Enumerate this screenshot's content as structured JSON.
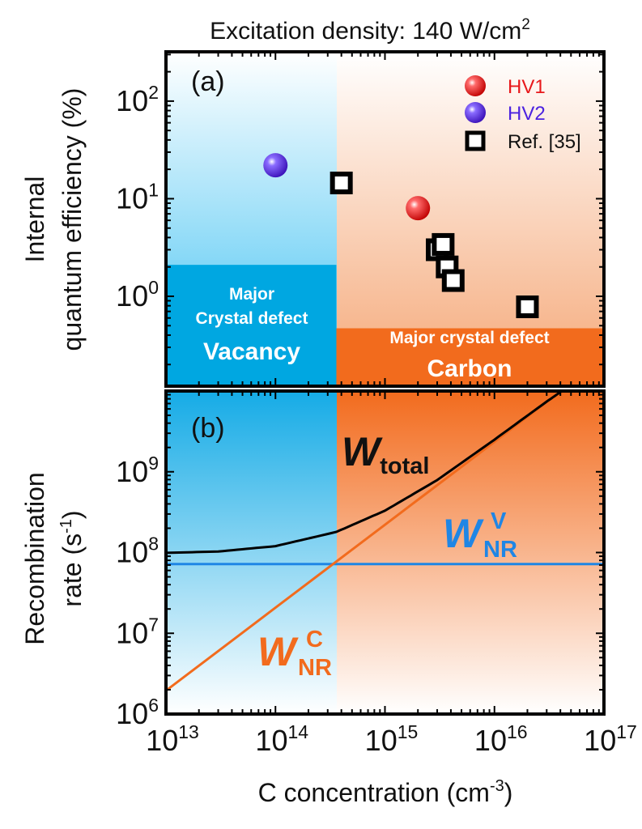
{
  "header": {
    "prefix": "Excitation density: 140 W/cm",
    "sup": "2"
  },
  "chart_data": [
    {
      "panel": "(a)",
      "type": "scatter",
      "ylabel": [
        "Internal",
        "quantum efficiency (%)"
      ],
      "x_log": true,
      "y_log": true,
      "xlim": [
        10000000000000.0,
        1e+17
      ],
      "ylim": [
        0.12,
        320
      ],
      "y_ticks": [
        {
          "base": "10",
          "exp": "0",
          "value": 1
        },
        {
          "base": "10",
          "exp": "1",
          "value": 10
        },
        {
          "base": "10",
          "exp": "2",
          "value": 100
        }
      ],
      "boundary_x": 360000000000000.0,
      "series": [
        {
          "name": "HV1",
          "marker": "sphere",
          "color": "#e8181b",
          "points": [
            [
              2000000000000000.0,
              8
            ]
          ]
        },
        {
          "name": "HV2",
          "marker": "sphere",
          "color": "#5b2ae8",
          "points": [
            [
              100000000000000.0,
              22
            ]
          ]
        },
        {
          "name": "Ref. [35]",
          "marker": "open-square",
          "color": "#000000",
          "points": [
            [
              400000000000000.0,
              14.5
            ],
            [
              3000000000000000.0,
              3.0
            ],
            [
              3400000000000000.0,
              3.4
            ],
            [
              3700000000000000.0,
              2.0
            ],
            [
              4200000000000000.0,
              1.45
            ],
            [
              2e+16,
              0.78
            ]
          ]
        }
      ],
      "regions": [
        {
          "lines": [
            "Major",
            "Crystal defect",
            "Vacancy"
          ],
          "color": "#00a7e1",
          "x_range": [
            10000000000000.0,
            360000000000000.0
          ],
          "y_top": 2.1
        },
        {
          "lines": [
            "Major crystal defect",
            "Carbon"
          ],
          "color": "#f26b1d",
          "x_range": [
            360000000000000.0,
            1e+17
          ],
          "y_top": 0.47
        }
      ]
    },
    {
      "panel": "(b)",
      "type": "line",
      "ylabel": [
        "Recombination",
        "rate (s",
        "-1",
        ")"
      ],
      "xlabel": {
        "text": "C concentration (cm",
        "sup": "-3",
        "close": ")"
      },
      "x_log": true,
      "y_log": true,
      "xlim": [
        10000000000000.0,
        1e+17
      ],
      "ylim": [
        1000000.0,
        10000000000.0
      ],
      "x_ticks": [
        {
          "base": "10",
          "exp": "13",
          "value": 10000000000000.0
        },
        {
          "base": "10",
          "exp": "14",
          "value": 100000000000000.0
        },
        {
          "base": "10",
          "exp": "15",
          "value": 1000000000000000.0
        },
        {
          "base": "10",
          "exp": "16",
          "value": 1e+16
        },
        {
          "base": "10",
          "exp": "17",
          "value": 1e+17
        }
      ],
      "y_ticks": [
        {
          "base": "10",
          "exp": "6",
          "value": 1000000.0
        },
        {
          "base": "10",
          "exp": "7",
          "value": 10000000.0
        },
        {
          "base": "10",
          "exp": "8",
          "value": 100000000.0
        },
        {
          "base": "10",
          "exp": "9",
          "value": 1000000000.0
        }
      ],
      "series": [
        {
          "name": "W_total",
          "label_main": "W",
          "label_sub": "total",
          "color": "#000000",
          "x": [
            10000000000000.0,
            30000000000000.0,
            100000000000000.0,
            360000000000000.0,
            1000000000000000.0,
            3000000000000000.0,
            1e+16,
            3e+16,
            5e+16
          ],
          "y": [
            99000000.0,
            103000000.0,
            120000000.0,
            180000000.0,
            330000000.0,
            790000000.0,
            2500000000.0,
            7400000000.0,
            12000000000.0
          ]
        },
        {
          "name": "W_NR^V",
          "label_main": "W",
          "label_sub": "NR",
          "label_sup": "V",
          "color": "#1f86e5",
          "x": [
            10000000000000.0,
            1e+17
          ],
          "y": [
            72000000.0,
            72000000.0
          ]
        },
        {
          "name": "W_NR^C",
          "label_main": "W",
          "label_sub": "NR",
          "label_sup": "C",
          "color": "#f26b1d",
          "x": [
            10000000000000.0,
            1e+17
          ],
          "y": [
            1950000.0,
            25000000000.0
          ]
        }
      ]
    }
  ]
}
